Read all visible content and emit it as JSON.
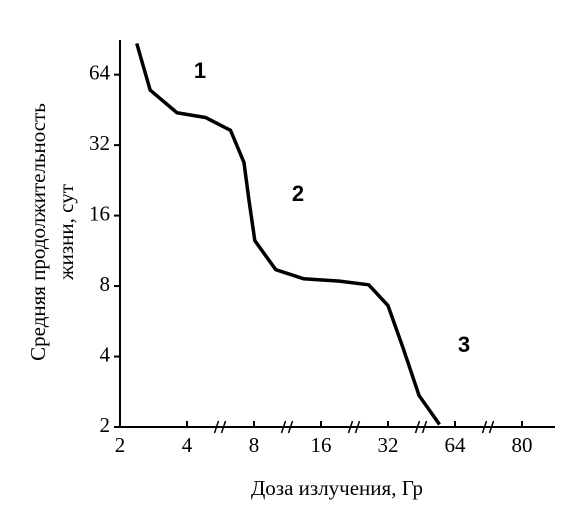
{
  "chart_data": {
    "type": "line",
    "xlabel": "Доза излучения, Гр",
    "ylabel": [
      "Средняя продолжительность",
      "жизни, сут"
    ],
    "x": [
      2.5,
      2.9,
      3.7,
      5.1,
      6.6,
      7.4,
      7.7,
      8.1,
      10.6,
      13.9,
      20.4,
      27.4,
      32,
      39.4,
      46.8,
      56.6
    ],
    "values": [
      87,
      55,
      44,
      42,
      37,
      27,
      18.6,
      12.5,
      9.4,
      8.6,
      8.4,
      8.1,
      6.6,
      4.3,
      2.73,
      2.05
    ],
    "color": "#000000",
    "xlim": [
      2,
      88
    ],
    "xticks": [
      2,
      4,
      8,
      16,
      32,
      64,
      80
    ],
    "ylim": [
      2,
      90
    ],
    "yticks": [
      2,
      4,
      8,
      16,
      32,
      64
    ],
    "ylog": true,
    "annotations": [
      "1",
      "2",
      "3"
    ]
  }
}
